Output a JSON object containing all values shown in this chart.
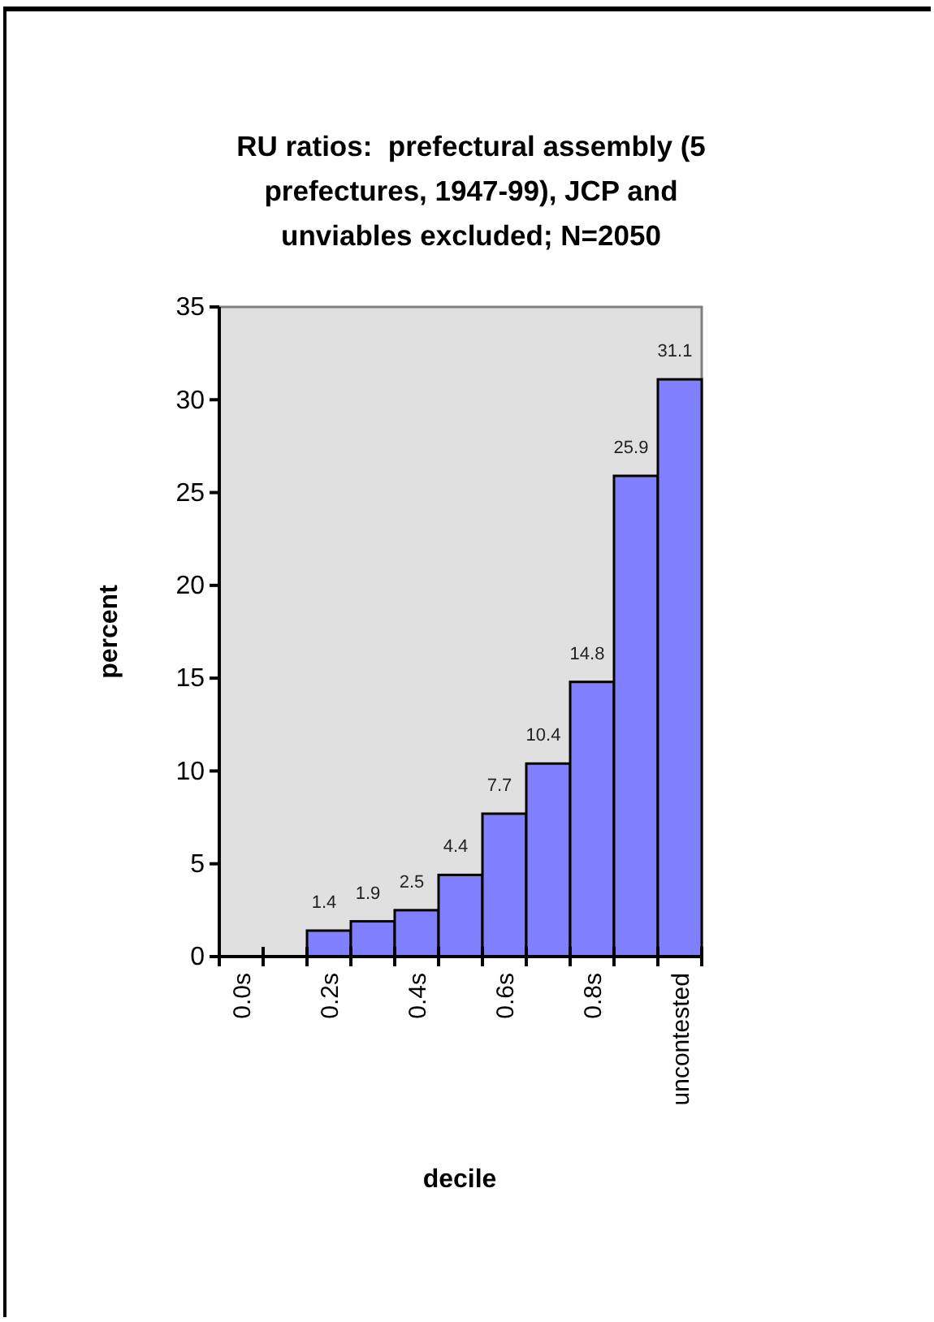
{
  "chart_data": {
    "type": "bar",
    "title": "RU ratios:  prefectural assembly (5 prefectures, 1947-99), JCP and unviables excluded; N=2050",
    "xlabel": "decile",
    "ylabel": "percent",
    "categories": [
      "0.0s",
      null,
      "0.2s",
      null,
      "0.4s",
      null,
      "0.6s",
      null,
      "0.8s",
      null,
      "uncontested"
    ],
    "values": [
      0,
      0,
      1.4,
      1.9,
      2.5,
      4.4,
      7.7,
      10.4,
      14.8,
      25.9,
      31.1
    ],
    "value_labels": [
      null,
      null,
      "1.4",
      "1.9",
      "2.5",
      "4.4",
      "7.7",
      "10.4",
      "14.8",
      "25.9",
      "31.1"
    ],
    "color": "#8080ff",
    "ylim": [
      0,
      35
    ],
    "yticks": [
      0,
      5,
      10,
      15,
      20,
      25,
      30,
      35
    ]
  }
}
